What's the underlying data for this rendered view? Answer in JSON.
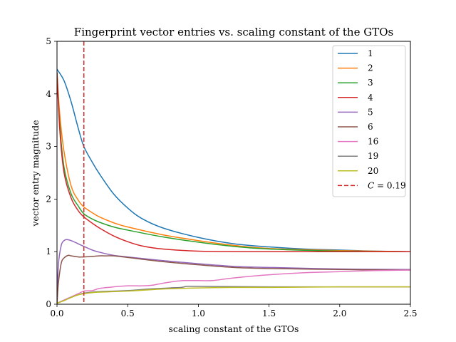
{
  "chart_data": {
    "type": "line",
    "title": "Fingerprint vector entries vs. scaling constant of the GTOs",
    "xlabel": "scaling constant of the GTOs",
    "ylabel": "vector entry magnitude",
    "xlim": [
      0,
      2.5
    ],
    "ylim": [
      0,
      5
    ],
    "xticks": [
      0,
      0.5,
      1,
      1.5,
      2,
      2.5
    ],
    "xtick_labels": [
      "0.0",
      "0.5",
      "1.0",
      "1.5",
      "2.0",
      "2.5"
    ],
    "yticks": [
      0,
      1,
      2,
      3,
      4,
      5
    ],
    "ytick_labels": [
      "0",
      "1",
      "2",
      "3",
      "4",
      "5"
    ],
    "grid": false,
    "legend_position": "top-right",
    "series": [
      {
        "name": "1",
        "color": "#1f77b4",
        "x": [
          0,
          0.05,
          0.1,
          0.15,
          0.19,
          0.25,
          0.3,
          0.4,
          0.5,
          0.6,
          0.75,
          1.0,
          1.25,
          1.5,
          1.75,
          2.0,
          2.25,
          2.5
        ],
        "y": [
          4.47,
          4.25,
          3.85,
          3.35,
          3.0,
          2.7,
          2.48,
          2.1,
          1.83,
          1.63,
          1.45,
          1.27,
          1.15,
          1.09,
          1.05,
          1.03,
          1.01,
          1.0
        ]
      },
      {
        "name": "2",
        "color": "#ff7f0e",
        "x": [
          0,
          0.02,
          0.05,
          0.1,
          0.15,
          0.19,
          0.25,
          0.3,
          0.4,
          0.5,
          0.75,
          1.0,
          1.25,
          1.5,
          2.0,
          2.5
        ],
        "y": [
          4.4,
          3.6,
          2.9,
          2.25,
          1.98,
          1.85,
          1.74,
          1.66,
          1.55,
          1.47,
          1.32,
          1.21,
          1.12,
          1.06,
          1.02,
          1.0
        ]
      },
      {
        "name": "3",
        "color": "#2ca02c",
        "x": [
          0,
          0.02,
          0.05,
          0.1,
          0.15,
          0.19,
          0.25,
          0.3,
          0.4,
          0.5,
          0.75,
          1.0,
          1.25,
          1.5,
          2.0,
          2.5
        ],
        "y": [
          4.4,
          3.4,
          2.6,
          2.1,
          1.87,
          1.72,
          1.62,
          1.56,
          1.47,
          1.41,
          1.28,
          1.18,
          1.1,
          1.05,
          1.01,
          1.0
        ]
      },
      {
        "name": "4",
        "color": "#d62728",
        "x": [
          0,
          0.02,
          0.05,
          0.1,
          0.15,
          0.19,
          0.25,
          0.3,
          0.4,
          0.5,
          0.6,
          0.75,
          1.0,
          1.25,
          1.5,
          2.0,
          2.5
        ],
        "y": [
          4.4,
          3.3,
          2.5,
          2.02,
          1.78,
          1.66,
          1.54,
          1.45,
          1.3,
          1.19,
          1.11,
          1.05,
          1.01,
          1.0,
          1.0,
          1.0,
          1.0
        ]
      },
      {
        "name": "5",
        "color": "#9467bd",
        "x": [
          0,
          0.01,
          0.03,
          0.05,
          0.07,
          0.1,
          0.15,
          0.19,
          0.25,
          0.3,
          0.4,
          0.5,
          0.75,
          1.0,
          1.25,
          1.5,
          2.0,
          2.5
        ],
        "y": [
          0.0,
          0.75,
          1.12,
          1.21,
          1.23,
          1.21,
          1.15,
          1.1,
          1.03,
          0.99,
          0.93,
          0.9,
          0.83,
          0.77,
          0.72,
          0.7,
          0.67,
          0.66
        ]
      },
      {
        "name": "6",
        "color": "#8c564b",
        "x": [
          0,
          0.01,
          0.03,
          0.05,
          0.08,
          0.1,
          0.15,
          0.19,
          0.25,
          0.3,
          0.35,
          0.4,
          0.5,
          0.75,
          1.0,
          1.25,
          1.5,
          2.0,
          2.5
        ],
        "y": [
          0.0,
          0.4,
          0.78,
          0.88,
          0.93,
          0.92,
          0.9,
          0.9,
          0.91,
          0.92,
          0.92,
          0.92,
          0.89,
          0.81,
          0.75,
          0.7,
          0.68,
          0.66,
          0.65
        ]
      },
      {
        "name": "16",
        "color": "#e377c2",
        "x": [
          0,
          0.05,
          0.1,
          0.15,
          0.19,
          0.25,
          0.3,
          0.4,
          0.5,
          0.6,
          0.67,
          0.75,
          0.85,
          0.9,
          1.0,
          1.1,
          1.25,
          1.5,
          1.75,
          2.0,
          2.25,
          2.5
        ],
        "y": [
          0.02,
          0.08,
          0.14,
          0.2,
          0.25,
          0.26,
          0.3,
          0.33,
          0.35,
          0.35,
          0.36,
          0.4,
          0.44,
          0.45,
          0.45,
          0.45,
          0.5,
          0.56,
          0.6,
          0.62,
          0.64,
          0.65
        ]
      },
      {
        "name": "19",
        "color": "#7f7f7f",
        "x": [
          0,
          0.05,
          0.1,
          0.15,
          0.19,
          0.25,
          0.3,
          0.5,
          0.65,
          0.8,
          0.88,
          0.92,
          1.0,
          1.25,
          1.5,
          2.0,
          2.5
        ],
        "y": [
          0.02,
          0.07,
          0.13,
          0.18,
          0.21,
          0.23,
          0.24,
          0.26,
          0.29,
          0.31,
          0.32,
          0.34,
          0.34,
          0.335,
          0.33,
          0.33,
          0.33
        ]
      },
      {
        "name": "20",
        "color": "#bcbd22",
        "x": [
          0,
          0.05,
          0.1,
          0.15,
          0.19,
          0.25,
          0.3,
          0.5,
          0.75,
          1.0,
          1.25,
          1.5,
          2.0,
          2.5
        ],
        "y": [
          0.02,
          0.07,
          0.13,
          0.18,
          0.2,
          0.22,
          0.23,
          0.25,
          0.29,
          0.31,
          0.32,
          0.32,
          0.33,
          0.33
        ]
      }
    ],
    "reference_line": {
      "name": "C = 0.19",
      "label_prefix": "C",
      "label_value": "= 0.19",
      "x": 0.19,
      "color": "#d62728",
      "style": "dashed"
    }
  }
}
